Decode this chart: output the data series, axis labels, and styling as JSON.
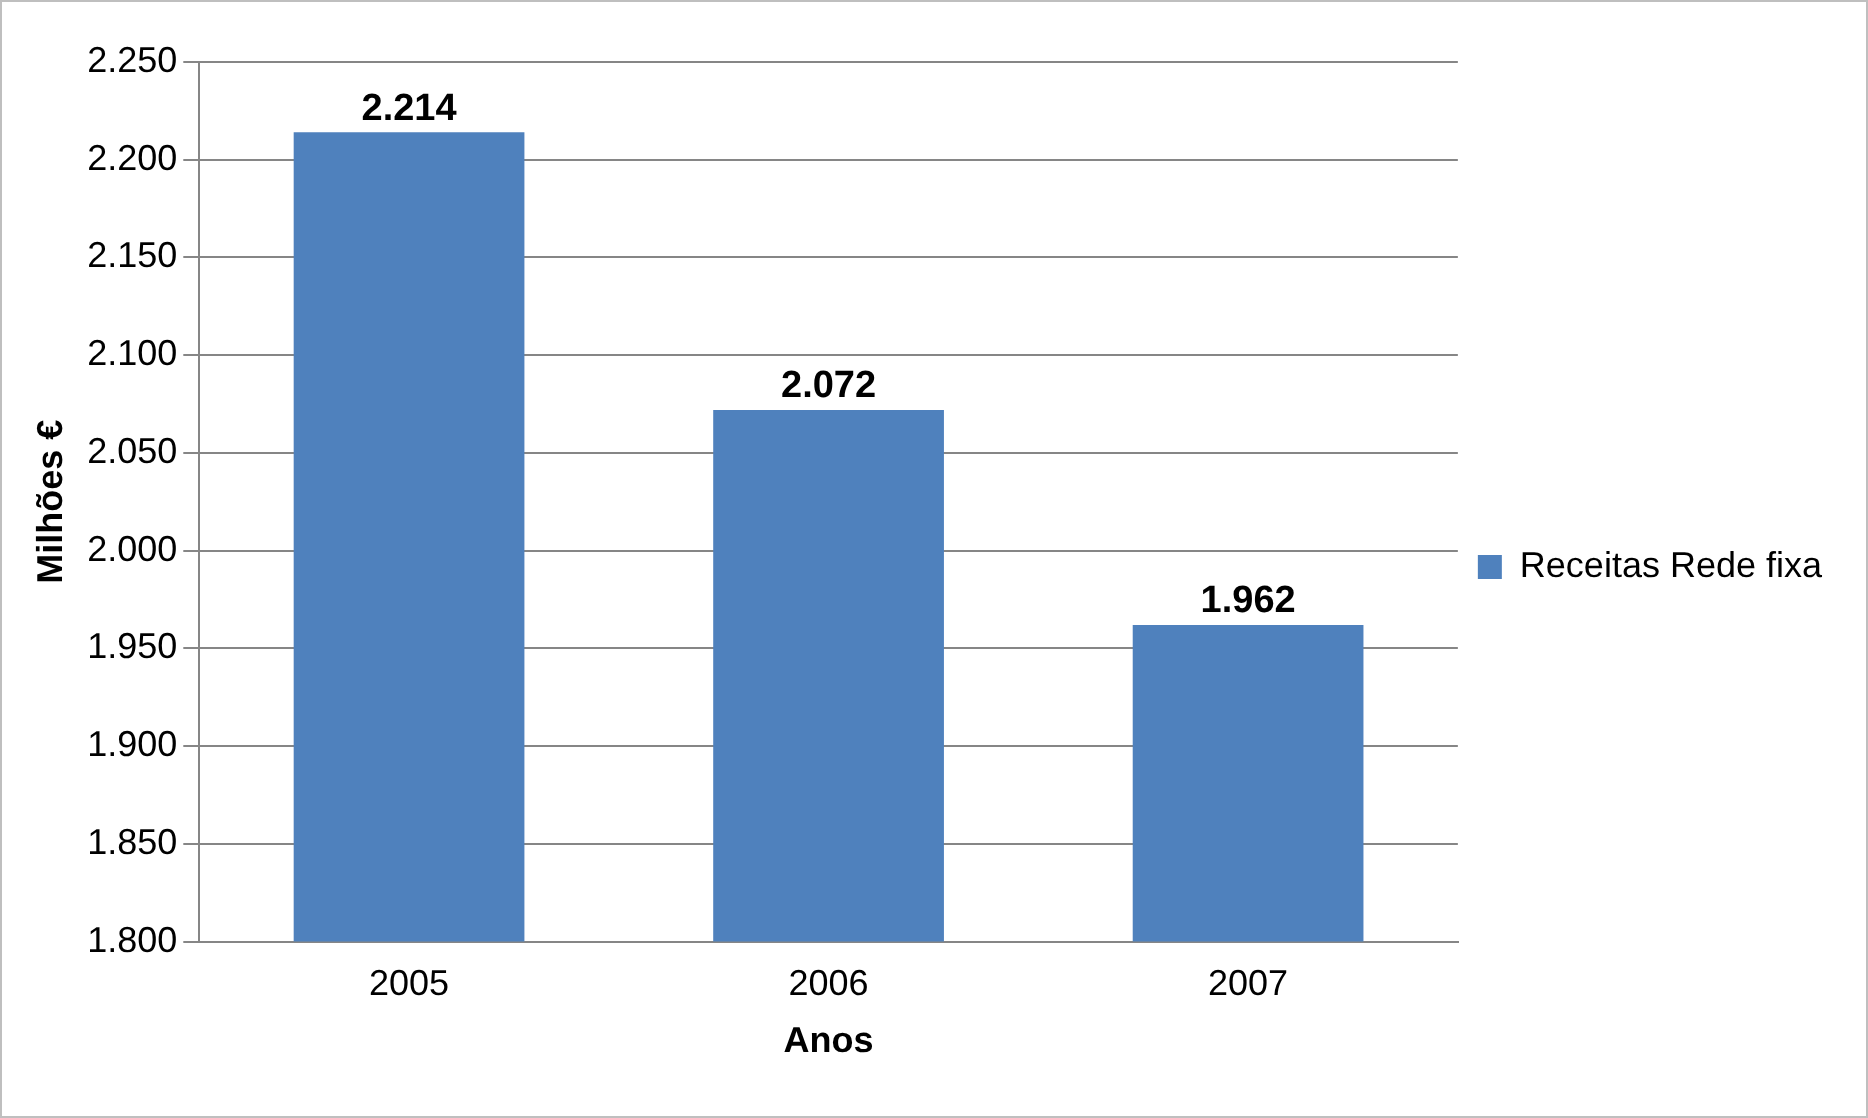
{
  "chart_data": {
    "type": "bar",
    "xlabel": "Anos",
    "ylabel": "Milhões €",
    "categories": [
      "2005",
      "2006",
      "2007"
    ],
    "series": [
      {
        "name": "Receitas Rede fixa",
        "color": "#4f81bd",
        "values": [
          2214,
          2072,
          1962
        ],
        "value_labels": [
          "2.214",
          "2.072",
          "1.962"
        ]
      }
    ],
    "ylim": [
      1800,
      2250
    ],
    "yticks": [
      {
        "value": 1800,
        "label": "1.800"
      },
      {
        "value": 1850,
        "label": "1.850"
      },
      {
        "value": 1900,
        "label": "1.900"
      },
      {
        "value": 1950,
        "label": "1.950"
      },
      {
        "value": 2000,
        "label": "2.000"
      },
      {
        "value": 2050,
        "label": "2.050"
      },
      {
        "value": 2100,
        "label": "2.100"
      },
      {
        "value": 2150,
        "label": "2.150"
      },
      {
        "value": 2200,
        "label": "2.200"
      },
      {
        "value": 2250,
        "label": "2.250"
      }
    ],
    "grid": "y",
    "legend": "right"
  }
}
